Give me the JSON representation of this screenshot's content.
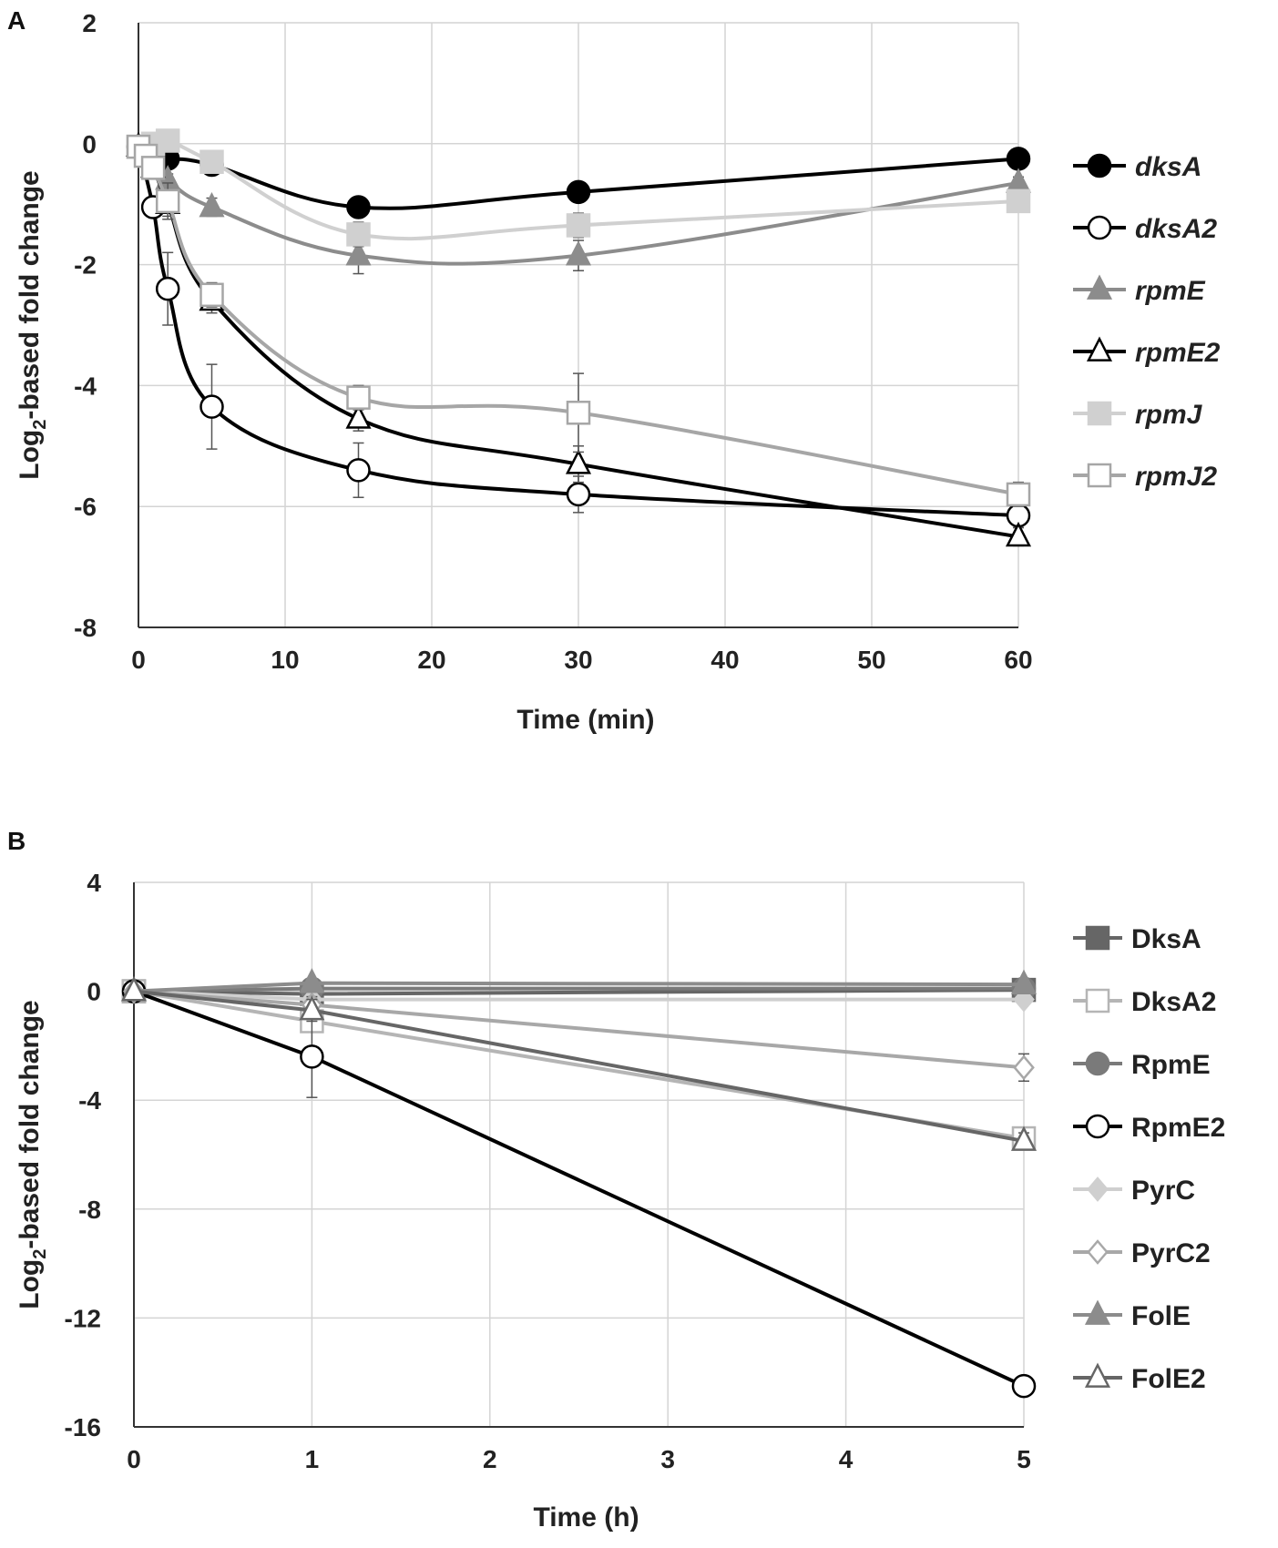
{
  "chart_data": [
    {
      "panel": "A",
      "type": "line",
      "xlabel": "Time (min)",
      "ylabel_prefix": "Log",
      "ylabel_sub": "2",
      "ylabel_suffix": "-based fold change",
      "xlim": [
        0,
        60
      ],
      "ylim": [
        -8,
        2
      ],
      "xticks": [
        0,
        10,
        20,
        30,
        40,
        50,
        60
      ],
      "yticks": [
        -8,
        -6,
        -4,
        -2,
        0,
        2
      ],
      "grid": true,
      "legend_position": "right",
      "legend_italic": true,
      "series": [
        {
          "name": "dksA",
          "color": "#000000",
          "marker": "circle",
          "filled": true,
          "x": [
            0,
            1,
            2,
            5,
            15,
            30,
            60
          ],
          "y": [
            -0.05,
            -0.2,
            -0.25,
            -0.35,
            -1.05,
            -0.8,
            -0.25
          ],
          "err": [
            0,
            0,
            0,
            0.15,
            0.1,
            0.15,
            0.1
          ]
        },
        {
          "name": "dksA2",
          "color": "#000000",
          "marker": "circle",
          "filled": false,
          "x": [
            0,
            1,
            2,
            5,
            15,
            30,
            60
          ],
          "y": [
            -0.05,
            -1.05,
            -2.4,
            -4.35,
            -5.4,
            -5.8,
            -6.15
          ],
          "err": [
            0,
            0.15,
            0.6,
            0.7,
            0.45,
            0.3,
            0.2
          ]
        },
        {
          "name": "rpmE",
          "color": "#8c8c8c",
          "marker": "triangle",
          "filled": true,
          "x": [
            0,
            1,
            2,
            5,
            15,
            30,
            60
          ],
          "y": [
            -0.05,
            -0.4,
            -0.6,
            -1.05,
            -1.85,
            -1.85,
            -0.65
          ],
          "err": [
            0,
            0.1,
            0.1,
            0.15,
            0.3,
            0.25,
            0.1
          ]
        },
        {
          "name": "rpmE2",
          "color": "#000000",
          "marker": "triangle",
          "filled": false,
          "x": [
            0,
            1,
            2,
            5,
            15,
            30,
            60
          ],
          "y": [
            -0.05,
            -0.4,
            -1.0,
            -2.6,
            -4.55,
            -5.3,
            -6.5
          ],
          "err": [
            0,
            0.1,
            0.2,
            0.2,
            0.2,
            0.3,
            0.15
          ]
        },
        {
          "name": "rpmJ",
          "color": "#d0d0d0",
          "marker": "square",
          "filled": true,
          "x": [
            0,
            1,
            2,
            5,
            15,
            30,
            60
          ],
          "y": [
            -0.05,
            0.0,
            0.05,
            -0.3,
            -1.5,
            -1.35,
            -0.95
          ],
          "err": [
            0,
            0.1,
            0.1,
            0.15,
            0.2,
            0.2,
            0.1
          ]
        },
        {
          "name": "rpmJ2",
          "color": "#a6a6a6",
          "marker": "square",
          "filled": false,
          "x": [
            0,
            0.5,
            1,
            2,
            5,
            15,
            30,
            60
          ],
          "y": [
            -0.05,
            -0.2,
            -0.4,
            -0.95,
            -2.5,
            -4.2,
            -4.45,
            -5.8
          ],
          "err": [
            0,
            0.1,
            0.1,
            0.3,
            0.2,
            0.2,
            0.65,
            0.2
          ]
        }
      ]
    },
    {
      "panel": "B",
      "type": "line",
      "xlabel": "Time (h)",
      "ylabel_prefix": "Log",
      "ylabel_sub": "2",
      "ylabel_suffix": "-based fold change",
      "xlim": [
        0,
        5
      ],
      "ylim": [
        -16,
        4
      ],
      "xticks": [
        0,
        1,
        2,
        3,
        4,
        5
      ],
      "yticks": [
        -16,
        -12,
        -8,
        -4,
        0,
        4
      ],
      "grid": true,
      "legend_position": "right",
      "legend_italic": false,
      "series": [
        {
          "name": "DksA",
          "color": "#666666",
          "marker": "square",
          "filled": true,
          "x": [
            0,
            1,
            5
          ],
          "y": [
            0,
            -0.1,
            0.05
          ],
          "err": [
            0,
            0.1,
            0.1
          ]
        },
        {
          "name": "DksA2",
          "color": "#b5b5b5",
          "marker": "square",
          "filled": false,
          "x": [
            0,
            1,
            5
          ],
          "y": [
            0,
            -1.1,
            -5.4
          ],
          "err": [
            0,
            0.4,
            0.3
          ]
        },
        {
          "name": "RpmE",
          "color": "#7a7a7a",
          "marker": "circle",
          "filled": true,
          "x": [
            0,
            1,
            5
          ],
          "y": [
            0,
            0.1,
            0.1
          ],
          "err": [
            0,
            0.1,
            0.1
          ]
        },
        {
          "name": "RpmE2",
          "color": "#000000",
          "marker": "circle",
          "filled": false,
          "x": [
            0,
            1,
            5
          ],
          "y": [
            0,
            -2.4,
            -14.5
          ],
          "err": [
            0,
            1.5,
            0.2
          ]
        },
        {
          "name": "PyrC",
          "color": "#cfcfcf",
          "marker": "diamond",
          "filled": true,
          "x": [
            0,
            1,
            5
          ],
          "y": [
            0,
            -0.3,
            -0.3
          ],
          "err": [
            0,
            0.2,
            0.2
          ]
        },
        {
          "name": "PyrC2",
          "color": "#a8a8a8",
          "marker": "diamond",
          "filled": false,
          "x": [
            0,
            1,
            5
          ],
          "y": [
            0,
            -0.5,
            -2.8
          ],
          "err": [
            0,
            0.3,
            0.5
          ]
        },
        {
          "name": "FolE",
          "color": "#8c8c8c",
          "marker": "triangle",
          "filled": true,
          "x": [
            0,
            1,
            5
          ],
          "y": [
            0,
            0.3,
            0.25
          ],
          "err": [
            0,
            0.1,
            0.1
          ]
        },
        {
          "name": "FolE2",
          "color": "#666666",
          "marker": "triangle",
          "filled": false,
          "x": [
            0,
            1,
            5
          ],
          "y": [
            0,
            -0.7,
            -5.5
          ],
          "err": [
            0,
            0.4,
            0.3
          ]
        }
      ]
    }
  ]
}
